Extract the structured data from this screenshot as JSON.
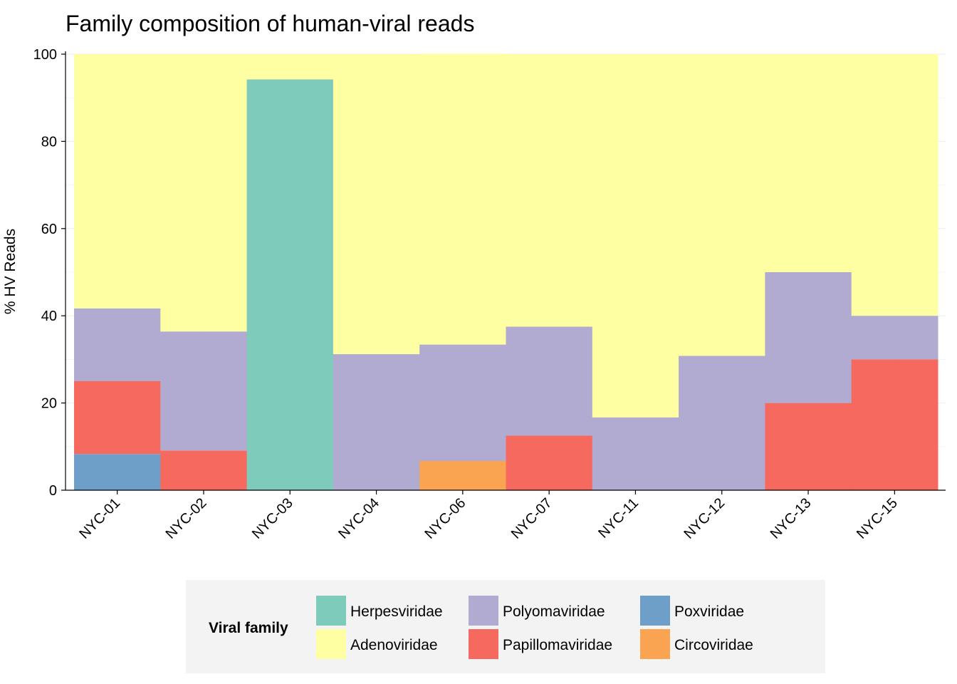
{
  "chart_data": {
    "type": "bar",
    "stacked": true,
    "title": "Family composition of human-viral reads",
    "xlabel": "",
    "ylabel": "% HV Reads",
    "ylim": [
      0,
      100
    ],
    "yticks": [
      0,
      20,
      40,
      60,
      80,
      100
    ],
    "grid": true,
    "categories": [
      "NYC-01",
      "NYC-02",
      "NYC-03",
      "NYC-04",
      "NYC-06",
      "NYC-07",
      "NYC-11",
      "NYC-12",
      "NYC-13",
      "NYC-15"
    ],
    "stack_order": [
      "Poxviridae",
      "Circoviridae",
      "Papillomaviridae",
      "Polyomaviridae",
      "Herpesviridae",
      "Adenoviridae"
    ],
    "series": [
      {
        "name": "Herpesviridae",
        "color": "#7fcbbb",
        "values": [
          0,
          0,
          94.2,
          0,
          0,
          0,
          0,
          0,
          0,
          0
        ]
      },
      {
        "name": "Adenoviridae",
        "color": "#fefea3",
        "values": [
          58.3,
          63.6,
          5.8,
          68.8,
          66.7,
          62.5,
          83.3,
          69.2,
          50,
          60
        ]
      },
      {
        "name": "Polyomaviridae",
        "color": "#b1aad1",
        "values": [
          16.7,
          27.3,
          0,
          31.2,
          26.7,
          25,
          16.7,
          30.8,
          30,
          10
        ]
      },
      {
        "name": "Papillomaviridae",
        "color": "#f6695e",
        "values": [
          16.7,
          9.1,
          0,
          0,
          0,
          12.5,
          0,
          0,
          20,
          30
        ]
      },
      {
        "name": "Poxviridae",
        "color": "#6d9fc9",
        "values": [
          8.3,
          0,
          0,
          0,
          0,
          0,
          0,
          0,
          0,
          0
        ]
      },
      {
        "name": "Circoviridae",
        "color": "#faa452",
        "values": [
          0,
          0,
          0,
          0,
          6.7,
          0,
          0,
          0,
          0,
          0
        ]
      }
    ],
    "legend": {
      "title": "Viral family",
      "position": "bottom",
      "entries": [
        "Herpesviridae",
        "Adenoviridae",
        "Polyomaviridae",
        "Papillomaviridae",
        "Poxviridae",
        "Circoviridae"
      ]
    }
  }
}
